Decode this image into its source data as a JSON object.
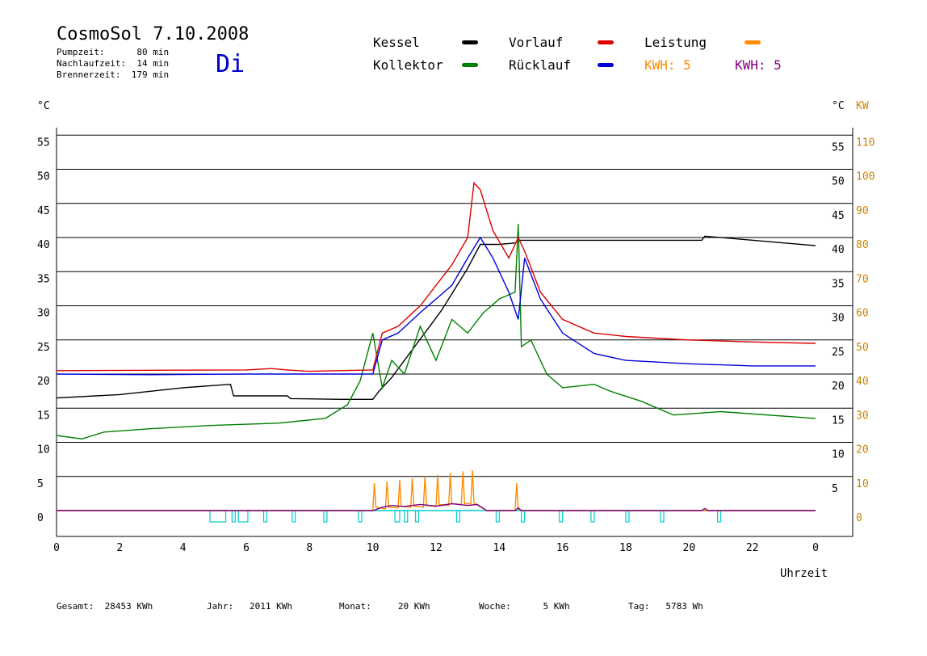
{
  "header": {
    "title": "CosmoSol 7.10.2008",
    "pumpzeit": "Pumpzeit:      80 min",
    "nachlaufzeit": "Nachlaufzeit:  14 min",
    "brennerzeit": "Brennerzeit:  179 min",
    "weekday": "Di"
  },
  "legend": {
    "kessel": {
      "label": "Kessel",
      "color": "#000000"
    },
    "kollektor": {
      "label": "Kollektor",
      "color": "#008000"
    },
    "vorlauf": {
      "label": "Vorlauf",
      "color": "#dd0000"
    },
    "ruecklauf": {
      "label": "Rücklauf",
      "color": "#0000dd"
    },
    "leistung": {
      "label": "Leistung",
      "color": "#ff8c00"
    },
    "kwh_orange": "KWH: 5",
    "kwh_purple": "KWH: 5"
  },
  "axes": {
    "left_unit": "°C",
    "right_unit_c": "°C",
    "right_unit_kw": "KW",
    "xlabel": "Uhrzeit"
  },
  "footer": {
    "gesamt": "Gesamt:  28453 KWh",
    "jahr": "Jahr:   2011 KWh",
    "monat": "Monat:     20 KWh",
    "woche": "Woche:      5 KWh",
    "tag": "Tag:   5783 Wh"
  },
  "chart_data": {
    "type": "line",
    "title": "CosmoSol 7.10.2008",
    "xlabel": "Uhrzeit",
    "ylabel": "°C",
    "ylabel_right": "KW",
    "xlim": [
      0,
      24
    ],
    "ylim": [
      -3.5,
      55
    ],
    "y_right_lim": [
      -7,
      110
    ],
    "x_ticks": [
      "0",
      "2",
      "4",
      "6",
      "8",
      "10",
      "12",
      "14",
      "16",
      "18",
      "20",
      "22",
      "0"
    ],
    "y_ticks": [
      0,
      5,
      10,
      15,
      20,
      25,
      30,
      35,
      40,
      45,
      50,
      55
    ],
    "y_right_kw_ticks": [
      0,
      10,
      20,
      30,
      40,
      50,
      60,
      70,
      80,
      90,
      100,
      110
    ],
    "grid": "horizontal",
    "series": [
      {
        "name": "Kessel",
        "color": "#000000",
        "x": [
          0,
          2,
          4,
          5.5,
          5.6,
          7.3,
          7.4,
          9.0,
          10.0,
          10.2,
          10.6,
          11.0,
          11.4,
          11.8,
          12.2,
          12.6,
          13.0,
          13.4,
          14.0,
          14.5,
          14.6,
          20.4,
          20.5,
          21.5,
          24
        ],
        "y": [
          16.5,
          17,
          18,
          18.5,
          16.8,
          16.8,
          16.4,
          16.3,
          16.3,
          17.5,
          19.5,
          22,
          24.5,
          27,
          29.5,
          32.5,
          35.5,
          39,
          39,
          39.2,
          39.6,
          39.6,
          40.2,
          39.8,
          38.8
        ]
      },
      {
        "name": "Kollektor",
        "color": "#008000",
        "x": [
          0,
          0.8,
          1.5,
          3,
          5,
          7,
          8.5,
          9.2,
          9.6,
          10.0,
          10.3,
          10.6,
          11.0,
          11.5,
          12.0,
          12.5,
          13.0,
          13.5,
          14.0,
          14.5,
          14.6,
          14.7,
          15.0,
          15.5,
          16.0,
          17.0,
          17.5,
          18.5,
          19.5,
          21,
          24
        ],
        "y": [
          11,
          10.5,
          11.5,
          12,
          12.5,
          12.8,
          13.5,
          15.5,
          19,
          26,
          18,
          22,
          20,
          27,
          22,
          28,
          26,
          29,
          31,
          32,
          42,
          24,
          25,
          20,
          18,
          18.5,
          17.5,
          16,
          14,
          14.5,
          13.5
        ]
      },
      {
        "name": "Vorlauf",
        "color": "#dd0000",
        "x": [
          0,
          6,
          6.8,
          7.3,
          8,
          10.0,
          10.3,
          10.8,
          11.5,
          12.0,
          12.5,
          13.0,
          13.2,
          13.4,
          13.8,
          14.3,
          14.6,
          14.8,
          15.3,
          16.0,
          17.0,
          18.0,
          20,
          22,
          24
        ],
        "y": [
          20.5,
          20.6,
          20.8,
          20.6,
          20.4,
          20.6,
          26,
          27,
          30,
          33,
          36,
          40,
          48,
          47,
          41,
          37,
          40,
          38,
          32,
          28,
          26,
          25.5,
          25,
          24.7,
          24.5
        ]
      },
      {
        "name": "Rücklauf",
        "color": "#0000dd",
        "x": [
          0,
          3,
          6,
          8,
          10.0,
          10.3,
          10.8,
          11.5,
          12.0,
          12.5,
          13.0,
          13.4,
          13.8,
          14.3,
          14.6,
          14.8,
          15.3,
          16.0,
          17.0,
          18.0,
          20,
          22,
          24
        ],
        "y": [
          20.0,
          19.9,
          20.0,
          20.0,
          20.0,
          25,
          26,
          29,
          31,
          33,
          37,
          40,
          37,
          32,
          28,
          37,
          31,
          26,
          23,
          22,
          21.5,
          21.2,
          21.2
        ]
      },
      {
        "name": "Leistung",
        "color": "#ff8c00",
        "x": [
          0,
          10.0,
          10.05,
          10.1,
          10.4,
          10.45,
          10.5,
          10.8,
          10.85,
          10.9,
          11.2,
          11.25,
          11.3,
          11.6,
          11.65,
          11.7,
          12.0,
          12.05,
          12.1,
          12.4,
          12.45,
          12.5,
          12.8,
          12.85,
          12.9,
          13.1,
          13.15,
          13.2,
          13.6,
          14.5,
          14.55,
          14.6,
          14.7,
          24
        ],
        "y": [
          0,
          0,
          8,
          1,
          0.5,
          8.5,
          1,
          0.8,
          9,
          1.2,
          1,
          9.5,
          1.3,
          1,
          10,
          1.5,
          1.2,
          10.5,
          1.8,
          1.5,
          11,
          2,
          1.8,
          11.5,
          2,
          2,
          11.8,
          2.2,
          0,
          0,
          8,
          0.5,
          0,
          0
        ]
      },
      {
        "name": "KWH",
        "color": "#800080",
        "x": [
          0,
          10.0,
          10.3,
          10.6,
          11.0,
          11.5,
          12.0,
          12.5,
          13.0,
          13.3,
          13.6,
          14.5,
          14.6,
          14.7,
          20.4,
          20.5,
          20.6,
          24
        ],
        "y": [
          0,
          0,
          1,
          1.5,
          1.2,
          1.8,
          1.3,
          2,
          1.5,
          1.8,
          0,
          0,
          0.8,
          0,
          0,
          0.6,
          0,
          0
        ]
      }
    ],
    "pump_segments": [
      [
        4.85,
        5.35
      ],
      [
        5.55,
        5.65
      ],
      [
        5.75,
        6.05
      ],
      [
        6.55,
        6.65
      ],
      [
        7.45,
        7.55
      ],
      [
        8.45,
        8.55
      ],
      [
        9.55,
        9.65
      ],
      [
        10.7,
        10.85
      ],
      [
        11.0,
        11.1
      ],
      [
        11.35,
        11.45
      ],
      [
        12.65,
        12.75
      ],
      [
        13.9,
        14.0
      ],
      [
        14.7,
        14.8
      ],
      [
        15.9,
        16.0
      ],
      [
        16.9,
        17.0
      ],
      [
        18.0,
        18.1
      ],
      [
        19.1,
        19.2
      ],
      [
        20.9,
        21.0
      ]
    ]
  }
}
